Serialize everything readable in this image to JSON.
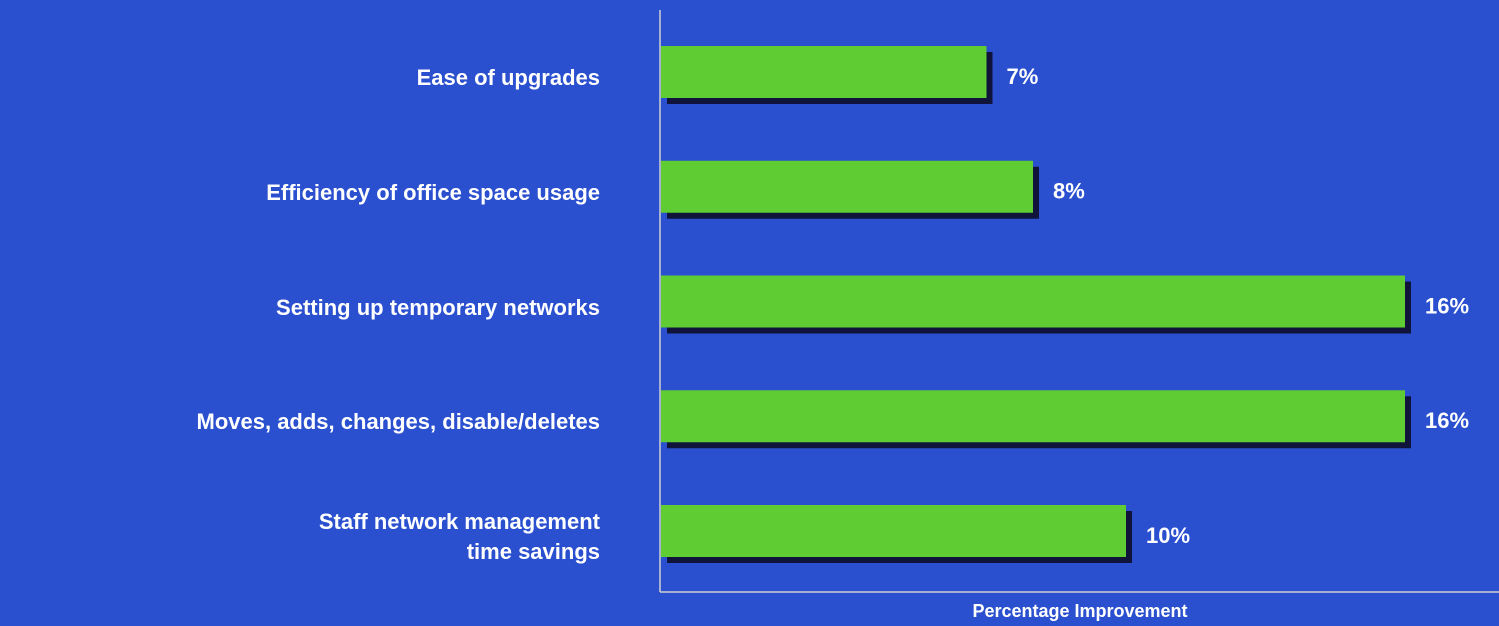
{
  "chart_data": {
    "type": "hbar",
    "categories": [
      "Ease of upgrades",
      "Efficiency of office space usage",
      "Setting up temporary networks",
      "Moves, adds, changes, disable/deletes",
      "Staff network management\ntime savings"
    ],
    "values": [
      7,
      8,
      16,
      16,
      10
    ],
    "value_labels": [
      "7%",
      "8%",
      "16%",
      "16%",
      "10%"
    ],
    "color": "#5fcc33",
    "x_label": "Percentage Improvement",
    "xlim": [
      0,
      18
    ]
  }
}
